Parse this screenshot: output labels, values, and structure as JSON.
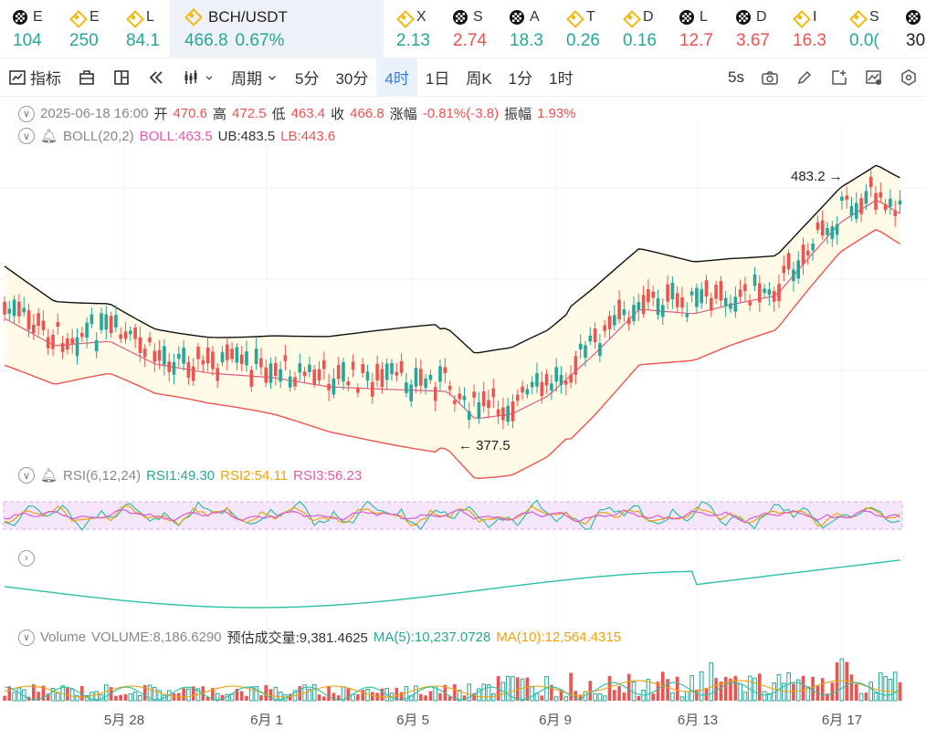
{
  "tickers": [
    {
      "sym": "E",
      "icon": "okx",
      "value": "104",
      "color": "green"
    },
    {
      "sym": "E",
      "icon": "bnb",
      "value": "250",
      "color": "green"
    },
    {
      "sym": "L",
      "icon": "bnb",
      "value": "84.1",
      "color": "green"
    },
    {
      "sym": "BCH/USDT",
      "icon": "bnb",
      "value": "466.8",
      "change": "0.67%",
      "color": "green",
      "active": true
    },
    {
      "sym": "X",
      "icon": "bnb",
      "value": "2.13",
      "color": "green"
    },
    {
      "sym": "S",
      "icon": "okx",
      "value": "2.74",
      "color": "red"
    },
    {
      "sym": "A",
      "icon": "okx",
      "value": "18.3",
      "color": "green"
    },
    {
      "sym": "T",
      "icon": "bnb",
      "value": "0.26",
      "color": "green"
    },
    {
      "sym": "D",
      "icon": "bnb",
      "value": "0.16",
      "color": "green"
    },
    {
      "sym": "L",
      "icon": "okx",
      "value": "12.7",
      "color": "red"
    },
    {
      "sym": "D",
      "icon": "okx",
      "value": "3.67",
      "color": "red"
    },
    {
      "sym": "I",
      "icon": "bnb",
      "value": "16.3",
      "color": "red"
    },
    {
      "sym": "S",
      "icon": "bnb",
      "value": "0.0(",
      "color": "green"
    },
    {
      "sym": "",
      "icon": "okx",
      "value": "30",
      "color": "dark"
    }
  ],
  "toolbar": {
    "indicators": "指标",
    "period": "周期",
    "intervals": [
      "5分",
      "30分",
      "4时",
      "1日",
      "周K",
      "1分",
      "1时"
    ],
    "active_interval": "4时",
    "refresh": "5s"
  },
  "ohlc": {
    "datetime": "2025-06-18 16:00",
    "open_label": "开",
    "open": "470.6",
    "high_label": "高",
    "high": "472.5",
    "low_label": "低",
    "low": "463.4",
    "close_label": "收",
    "close": "466.8",
    "change_label": "涨幅",
    "change": "-0.81%(-3.8)",
    "amp_label": "振幅",
    "amp": "1.93%"
  },
  "boll": {
    "label": "BOLL(20,2)",
    "mid": "BOLL:463.5",
    "ub": "UB:483.5",
    "lb": "LB:443.6"
  },
  "rsi": {
    "label": "RSI(6,12,24)",
    "r1": "RSI1:49.30",
    "r2": "RSI2:54.11",
    "r3": "RSI3:56.23"
  },
  "volume": {
    "label": "Volume",
    "vol": "VOLUME:8,186.6290",
    "est": "预估成交量:9,381.4625",
    "ma5": "MA(5):10,237.0728",
    "ma10": "MA(10):12,564.4315"
  },
  "annotations": {
    "high": "483.2",
    "low": "377.5"
  },
  "x_labels": [
    "5月 28",
    "6月 1",
    "6月 5",
    "6月 9",
    "6月 13",
    "6月 17"
  ],
  "colors": {
    "up": "#26a69a",
    "down": "#ef5350",
    "boll_mid": "#e05b8a",
    "ub": "#111111",
    "lb": "#ef5350",
    "band": "#fffbe6",
    "rsi1": "#2bc0a6",
    "rsi2": "#f0a20b",
    "rsi3": "#d65bd6",
    "accent": "#3a7bd5"
  }
}
